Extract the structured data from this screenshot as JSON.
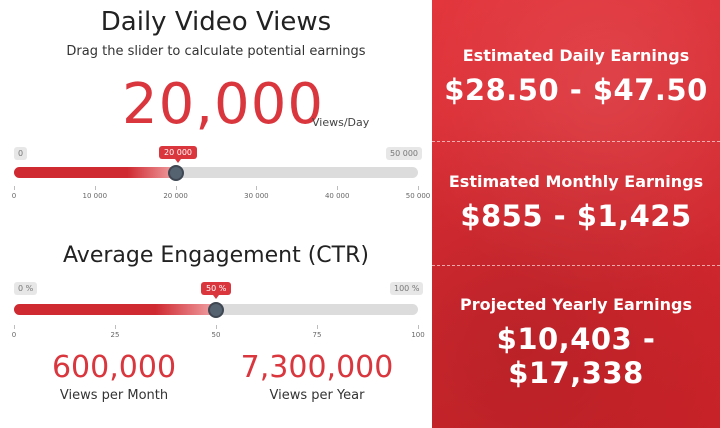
{
  "colors": {
    "accent": "#d9363e",
    "panel": "#d62a31",
    "thumb": "#556270",
    "track": "#dcdcdc"
  },
  "views": {
    "title": "Daily Video Views",
    "subtitle": "Drag the slider to calculate potential earnings",
    "value": "20,000",
    "unit": "Views/Day",
    "slider": {
      "min_label": "0",
      "max_label": "50 000",
      "value_label": "20 000",
      "value": 20000,
      "min": 0,
      "max": 50000,
      "ticks": [
        "0",
        "10 000",
        "20 000",
        "30 000",
        "40 000",
        "50 000"
      ]
    }
  },
  "engagement": {
    "title": "Average Engagement (CTR)",
    "slider": {
      "min_label": "0 %",
      "max_label": "100 %",
      "value_label": "50 %",
      "value": 50,
      "min": 0,
      "max": 100,
      "ticks": [
        "0",
        "25",
        "50",
        "75",
        "100"
      ]
    }
  },
  "stats": {
    "monthly": {
      "value": "600,000",
      "label": "Views per Month"
    },
    "yearly": {
      "value": "7,300,000",
      "label": "Views per Year"
    }
  },
  "earnings": {
    "daily": {
      "label": "Estimated Daily Earnings",
      "value": "$28.50 - $47.50"
    },
    "monthly": {
      "label": "Estimated Monthly Earnings",
      "value": "$855 - $1,425"
    },
    "yearly": {
      "label": "Projected Yearly Earnings",
      "value": "$10,403 - $17,338"
    }
  }
}
